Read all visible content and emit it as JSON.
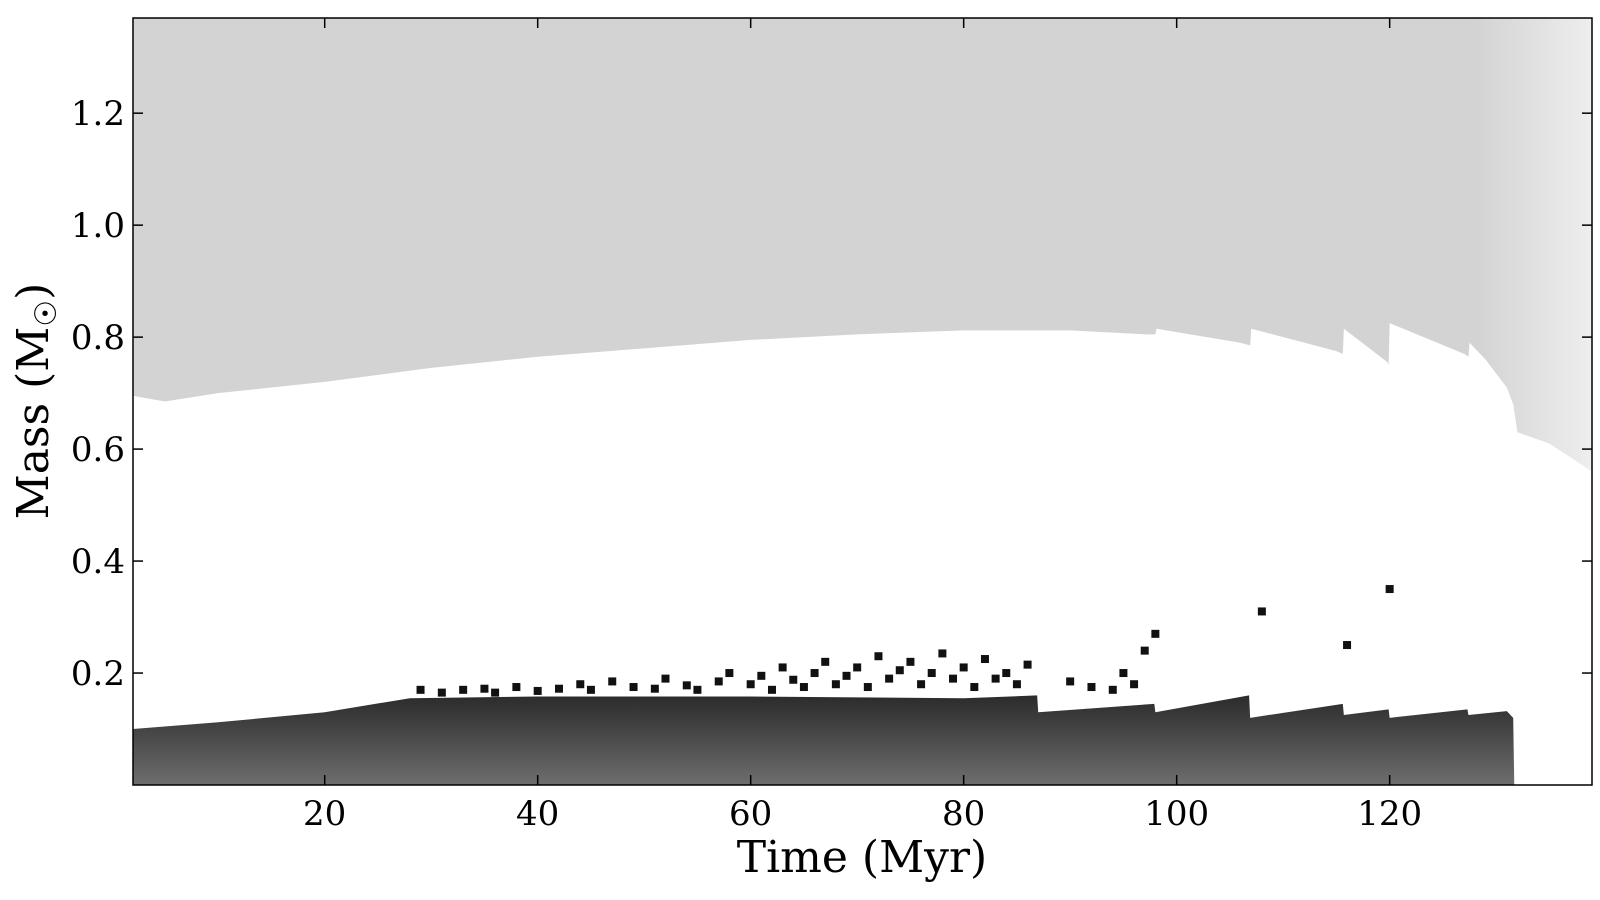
{
  "chart_data": {
    "type": "area",
    "xlabel": "Time (Myr)",
    "ylabel": "Mass (M",
    "ylabel_symbol": "☉",
    "ylabel_close": ")",
    "xlim": [
      2,
      139
    ],
    "ylim": [
      0,
      1.37
    ],
    "xticks": [
      20,
      40,
      60,
      80,
      100,
      120
    ],
    "yticks": [
      0.2,
      0.4,
      0.6,
      0.8,
      1.0,
      1.2
    ],
    "grid": false,
    "colors": {
      "envelope": "#d3d3d3",
      "envelope_light": "#eeeeee",
      "core_top": "#2b2b2b",
      "core_bottom": "#6e6e6e",
      "speckle": "#111111",
      "frame": "#000000"
    },
    "envelope_boundary": {
      "name": "",
      "x": [
        2,
        5,
        10,
        20,
        30,
        40,
        50,
        60,
        70,
        80,
        90,
        97,
        98,
        98.1,
        106,
        106.9,
        107,
        115,
        115.6,
        115.7,
        119.8,
        119.9,
        120,
        127,
        127.4,
        127.5,
        129,
        131,
        131.6,
        132,
        135,
        139
      ],
      "y": [
        0.695,
        0.685,
        0.7,
        0.72,
        0.745,
        0.765,
        0.78,
        0.795,
        0.805,
        0.812,
        0.812,
        0.805,
        0.805,
        0.815,
        0.79,
        0.785,
        0.815,
        0.775,
        0.77,
        0.815,
        0.755,
        0.75,
        0.825,
        0.77,
        0.765,
        0.79,
        0.76,
        0.71,
        0.68,
        0.63,
        0.61,
        0.56
      ]
    },
    "core_boundary": {
      "name": "",
      "x": [
        2,
        10,
        20,
        28,
        40,
        60,
        80,
        86.9,
        87,
        97.9,
        98,
        106.8,
        106.9,
        115.6,
        115.7,
        119.9,
        120,
        127.3,
        127.4,
        131,
        131.6,
        131.7
      ],
      "y": [
        0.1,
        0.112,
        0.13,
        0.155,
        0.158,
        0.158,
        0.155,
        0.16,
        0.13,
        0.145,
        0.13,
        0.16,
        0.12,
        0.145,
        0.125,
        0.135,
        0.12,
        0.135,
        0.125,
        0.132,
        0.12,
        0.0
      ]
    },
    "speckles": {
      "x": [
        29,
        31,
        33,
        35,
        36,
        38,
        40,
        42,
        44,
        45,
        47,
        49,
        51,
        52,
        54,
        55,
        57,
        58,
        60,
        61,
        62,
        63,
        64,
        65,
        66,
        67,
        68,
        69,
        70,
        71,
        72,
        73,
        74,
        75,
        76,
        77,
        78,
        79,
        80,
        81,
        82,
        83,
        84,
        85,
        86,
        90,
        92,
        94,
        95,
        96,
        97,
        98,
        108,
        116,
        120
      ],
      "y": [
        0.17,
        0.165,
        0.17,
        0.172,
        0.165,
        0.175,
        0.168,
        0.172,
        0.18,
        0.17,
        0.185,
        0.175,
        0.172,
        0.19,
        0.178,
        0.17,
        0.185,
        0.2,
        0.18,
        0.195,
        0.17,
        0.21,
        0.188,
        0.175,
        0.2,
        0.22,
        0.18,
        0.195,
        0.21,
        0.175,
        0.23,
        0.19,
        0.205,
        0.22,
        0.18,
        0.2,
        0.235,
        0.19,
        0.21,
        0.175,
        0.225,
        0.19,
        0.2,
        0.18,
        0.215,
        0.185,
        0.175,
        0.17,
        0.2,
        0.18,
        0.24,
        0.27,
        0.31,
        0.25,
        0.35
      ]
    }
  }
}
